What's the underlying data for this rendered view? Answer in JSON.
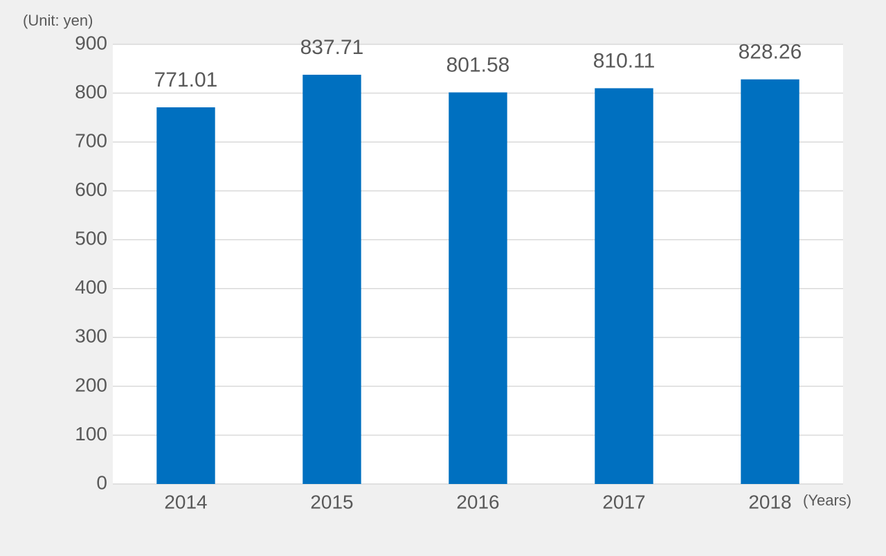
{
  "chart_data": {
    "type": "bar",
    "ylabel": "(Unit: yen)",
    "xlabel": "(Years)",
    "categories": [
      "2014",
      "2015",
      "2016",
      "2017",
      "2018"
    ],
    "values": [
      771.01,
      837.71,
      801.58,
      810.11,
      828.26
    ],
    "color": "#0070c0",
    "ylim": [
      0,
      900
    ],
    "yticks": [
      0,
      100,
      200,
      300,
      400,
      500,
      600,
      700,
      800,
      900
    ],
    "grid": true
  }
}
